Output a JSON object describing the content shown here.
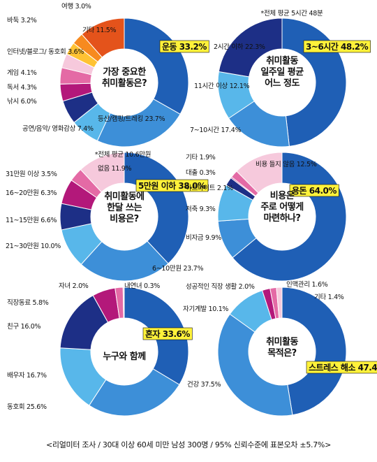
{
  "footer": "<리얼미터 조사 / 30대 이상 60세 미만 남성 300명 / 95% 신뢰수준에 표본오차 ±5.7%>",
  "colors": {
    "c1": "#1f5fb5",
    "c2": "#3d8fd8",
    "c3": "#58b7ea",
    "c4": "#1d2f86",
    "c5": "#b3187a",
    "c6": "#e46aa5",
    "c7": "#f6c9dc",
    "c8": "#ffc233",
    "c9": "#f78a1f",
    "c10": "#e4531b",
    "highlight": "#fff23a"
  },
  "chart_data": [
    {
      "type": "pie",
      "center_text": [
        "가장 중요한",
        "취미활동은?"
      ],
      "note": "",
      "slices": [
        {
          "label": "운동",
          "value": 33.2,
          "display": "운동 33.2%",
          "highlight": true
        },
        {
          "label": "등산/캠핑/트레킹",
          "value": 23.7,
          "display": "등산/캠핑/트레킹 23.7%"
        },
        {
          "label": "공연/음악/영화감상",
          "value": 7.4,
          "display": "공연/음악/ 영화감상 7.4%"
        },
        {
          "label": "낚시",
          "value": 6.0,
          "display": "낚시 6.0%"
        },
        {
          "label": "독서",
          "value": 4.3,
          "display": "독서 4.3%"
        },
        {
          "label": "게임",
          "value": 4.1,
          "display": "게임 4.1%"
        },
        {
          "label": "인터넷/블로그/동호회",
          "value": 3.6,
          "display": "인터넷/블로그/ 동호회 3.6%"
        },
        {
          "label": "바둑",
          "value": 3.2,
          "display": "바둑 3.2%"
        },
        {
          "label": "여행",
          "value": 3.0,
          "display": "여행 3.0%"
        },
        {
          "label": "기타",
          "value": 11.5,
          "display": "기타 11.5%"
        }
      ]
    },
    {
      "type": "pie",
      "center_text": [
        "취미활동",
        "일주일 평균",
        "어느 정도"
      ],
      "note": "*전체 평균 5시간 48분",
      "slices": [
        {
          "label": "3~6시간",
          "value": 48.2,
          "display": "3~6시간 48.2%",
          "highlight": true
        },
        {
          "label": "7~10시간",
          "value": 17.4,
          "display": "7~10시간 17.4%"
        },
        {
          "label": "11시간 이상",
          "value": 12.1,
          "display": "11시간 이상 12.1%"
        },
        {
          "label": "2시간 이하",
          "value": 22.3,
          "display": "2시간 이하 22.3%"
        }
      ]
    },
    {
      "type": "pie",
      "center_text": [
        "취미활동에",
        "한달 쓰는",
        "비용은?"
      ],
      "note": "*전체 평균 10.6만원",
      "slices": [
        {
          "label": "5만원 이하",
          "value": 38.0,
          "display": "5만원 이하 38.0%",
          "highlight": true
        },
        {
          "label": "6~10만원",
          "value": 23.7,
          "display": "6~10만원 23.7%"
        },
        {
          "label": "21~30만원",
          "value": 10.0,
          "display": "21~30만원 10.0%"
        },
        {
          "label": "11~15만원",
          "value": 6.6,
          "display": "11~15만원 6.6%"
        },
        {
          "label": "16~20만원",
          "value": 6.3,
          "display": "16~20만원 6.3%"
        },
        {
          "label": "31만원 이상",
          "value": 3.5,
          "display": "31만원 이상 3.5%"
        },
        {
          "label": "없음",
          "value": 11.9,
          "display": "없음 11.9%"
        }
      ]
    },
    {
      "type": "pie",
      "center_text": [
        "비용은",
        "주로 어떻게",
        "마련하나?"
      ],
      "note": "",
      "slices": [
        {
          "label": "용돈",
          "value": 64.0,
          "display": "용돈 64.0%",
          "highlight": true
        },
        {
          "label": "비자금",
          "value": 9.9,
          "display": "비자금 9.9%"
        },
        {
          "label": "저축",
          "value": 9.3,
          "display": "저축 9.3%"
        },
        {
          "label": "아르바이트",
          "value": 2.1,
          "display": "아르바이트 2.1%"
        },
        {
          "label": "대출",
          "value": 0.3,
          "display": "대출 0.3%"
        },
        {
          "label": "기타",
          "value": 1.9,
          "display": "기타 1.9%"
        },
        {
          "label": "비용 들지 않음",
          "value": 12.5,
          "display": "비용 들지 않음 12.5%"
        }
      ]
    },
    {
      "type": "pie",
      "center_text": [
        "누구와 함께"
      ],
      "note": "",
      "slices": [
        {
          "label": "혼자",
          "value": 33.6,
          "display": "혼자 33.6%",
          "highlight": true
        },
        {
          "label": "동호회",
          "value": 25.6,
          "display": "동호회 25.6%"
        },
        {
          "label": "배우자",
          "value": 16.7,
          "display": "배우자 16.7%"
        },
        {
          "label": "친구",
          "value": 16.0,
          "display": "친구 16.0%"
        },
        {
          "label": "직장동료",
          "value": 5.8,
          "display": "직장동료 5.8%"
        },
        {
          "label": "자녀",
          "value": 2.0,
          "display": "자녀 2.0%"
        },
        {
          "label": "내연녀",
          "value": 0.3,
          "display": "내연녀 0.3%"
        }
      ]
    },
    {
      "type": "pie",
      "center_text": [
        "취미활동",
        "목적은?"
      ],
      "note": "",
      "slices": [
        {
          "label": "스트레스 해소",
          "value": 47.4,
          "display": "스트레스 해소 47.4%",
          "highlight": true
        },
        {
          "label": "건강",
          "value": 37.5,
          "display": "건강 37.5%"
        },
        {
          "label": "자기계발",
          "value": 10.1,
          "display": "자기계발 10.1%"
        },
        {
          "label": "성공적인 직장생활",
          "value": 2.0,
          "display": "성공적인 직장 생활 2.0%"
        },
        {
          "label": "인맥관리",
          "value": 1.6,
          "display": "인맥관리 1.6%"
        },
        {
          "label": "기타",
          "value": 1.4,
          "display": "기타 1.4%"
        }
      ]
    }
  ]
}
